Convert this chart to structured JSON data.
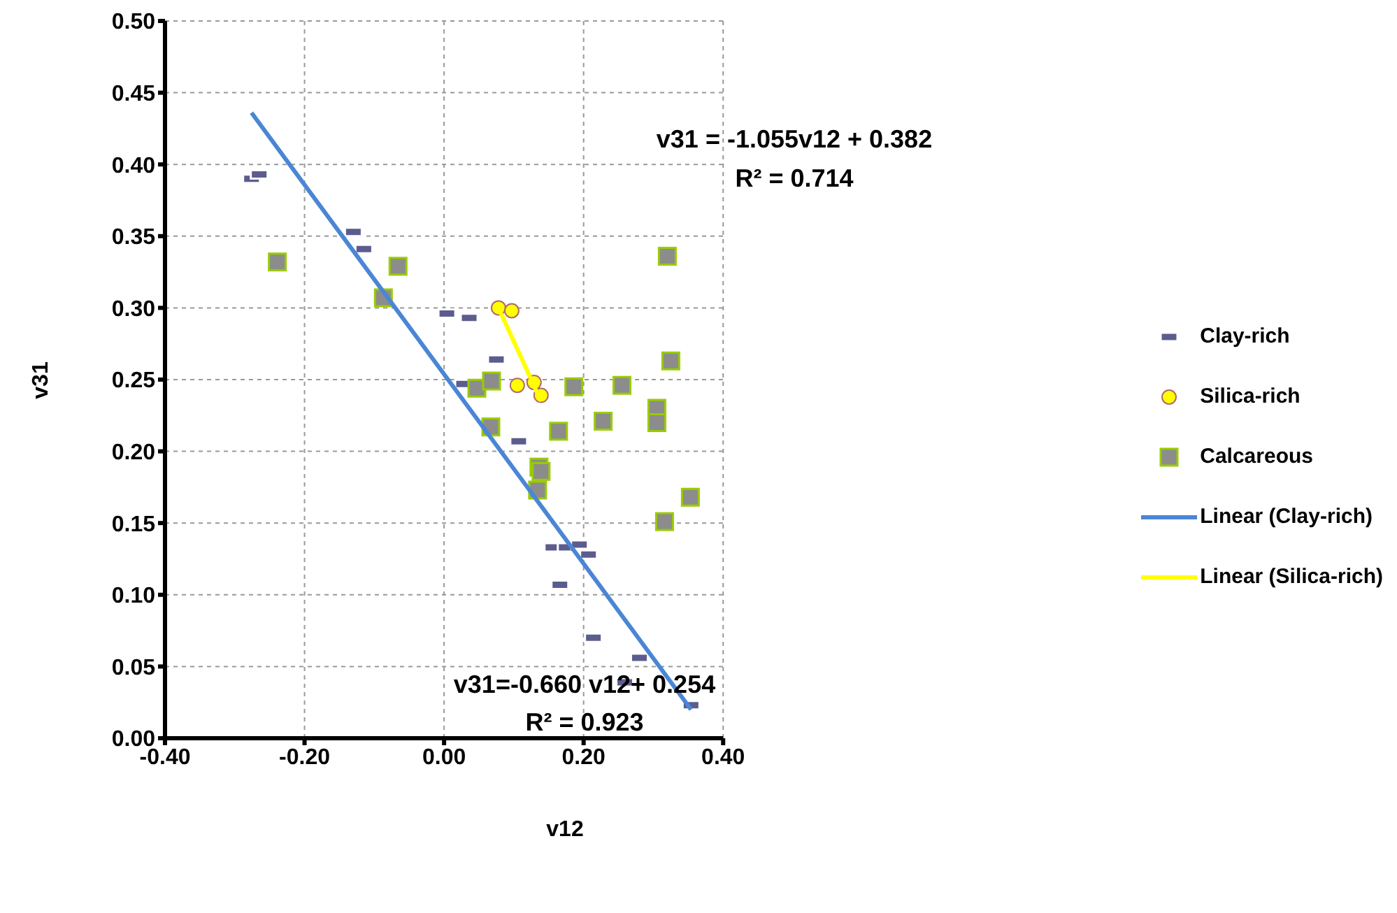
{
  "chart_data": {
    "type": "scatter",
    "xlabel": "v12",
    "ylabel": "v31",
    "xlim": [
      -0.4,
      0.4
    ],
    "xticks": [
      {
        "value": -0.4,
        "label": "-0.40"
      },
      {
        "value": -0.2,
        "label": "-0.20"
      },
      {
        "value": 0,
        "label": "0.00"
      },
      {
        "value": 0.2,
        "label": "0.20"
      },
      {
        "value": 0.4,
        "label": "0.40"
      }
    ],
    "ylim": [
      0,
      0.5
    ],
    "yticks": [
      {
        "value": 0,
        "label": "0.00"
      },
      {
        "value": 0.05,
        "label": "0.05"
      },
      {
        "value": 0.1,
        "label": "0.10"
      },
      {
        "value": 0.15,
        "label": "0.15"
      },
      {
        "value": 0.2,
        "label": "0.20"
      },
      {
        "value": 0.25,
        "label": "0.25"
      },
      {
        "value": 0.3,
        "label": "0.30"
      },
      {
        "value": 0.35,
        "label": "0.35"
      },
      {
        "value": 0.4,
        "label": "0.40"
      },
      {
        "value": 0.45,
        "label": "0.45"
      },
      {
        "value": 0.5,
        "label": "0.50"
      }
    ],
    "grid": true,
    "legend": "right",
    "series": [
      {
        "name": "Clay-rich",
        "color": "#5c5c8e",
        "x": [
          -0.276,
          -0.265,
          -0.13,
          -0.115,
          0.004,
          0.036,
          0.075,
          0.028,
          0.107,
          0.156,
          0.175,
          0.194,
          0.207,
          0.166,
          0.214,
          0.28,
          0.259,
          0.354
        ],
        "values": [
          0.39,
          0.393,
          0.353,
          0.341,
          0.296,
          0.293,
          0.264,
          0.247,
          0.207,
          0.133,
          0.133,
          0.135,
          0.128,
          0.107,
          0.07,
          0.056,
          0.039,
          0.023
        ]
      },
      {
        "name": "Silica-rich",
        "color": "#ffff00",
        "marker": "circle",
        "x": [
          0.078,
          0.097,
          0.105,
          0.129,
          0.139
        ],
        "values": [
          0.3,
          0.298,
          0.246,
          0.248,
          0.239
        ]
      },
      {
        "name": "Calcareous",
        "color": "#8c8c8c",
        "marker": "square",
        "x": [
          -0.239,
          -0.087,
          -0.066,
          0.32,
          0.325,
          0.047,
          0.068,
          0.186,
          0.255,
          0.067,
          0.164,
          0.228,
          0.305,
          0.305,
          0.136,
          0.139,
          0.134,
          0.353,
          0.316
        ],
        "values": [
          0.332,
          0.307,
          0.329,
          0.336,
          0.263,
          0.244,
          0.249,
          0.245,
          0.246,
          0.217,
          0.214,
          0.221,
          0.23,
          0.22,
          0.189,
          0.186,
          0.173,
          0.168,
          0.151
        ]
      },
      {
        "name": "Linear (Clay-rich)",
        "type": "line",
        "color": "#4a86d4",
        "x": [
          -0.276,
          0.354
        ],
        "values": [
          0.436,
          0.02
        ]
      },
      {
        "name": "Linear (Silica-rich)",
        "type": "line",
        "color": "#ffff00",
        "x": [
          0.078,
          0.139
        ],
        "values": [
          0.3,
          0.235
        ]
      }
    ],
    "annotations": [
      "v31 = -1.055v12 + 0.382",
      "R² = 0.714",
      "v31=-0.660 v12+ 0.254",
      "R² = 0.923"
    ]
  }
}
